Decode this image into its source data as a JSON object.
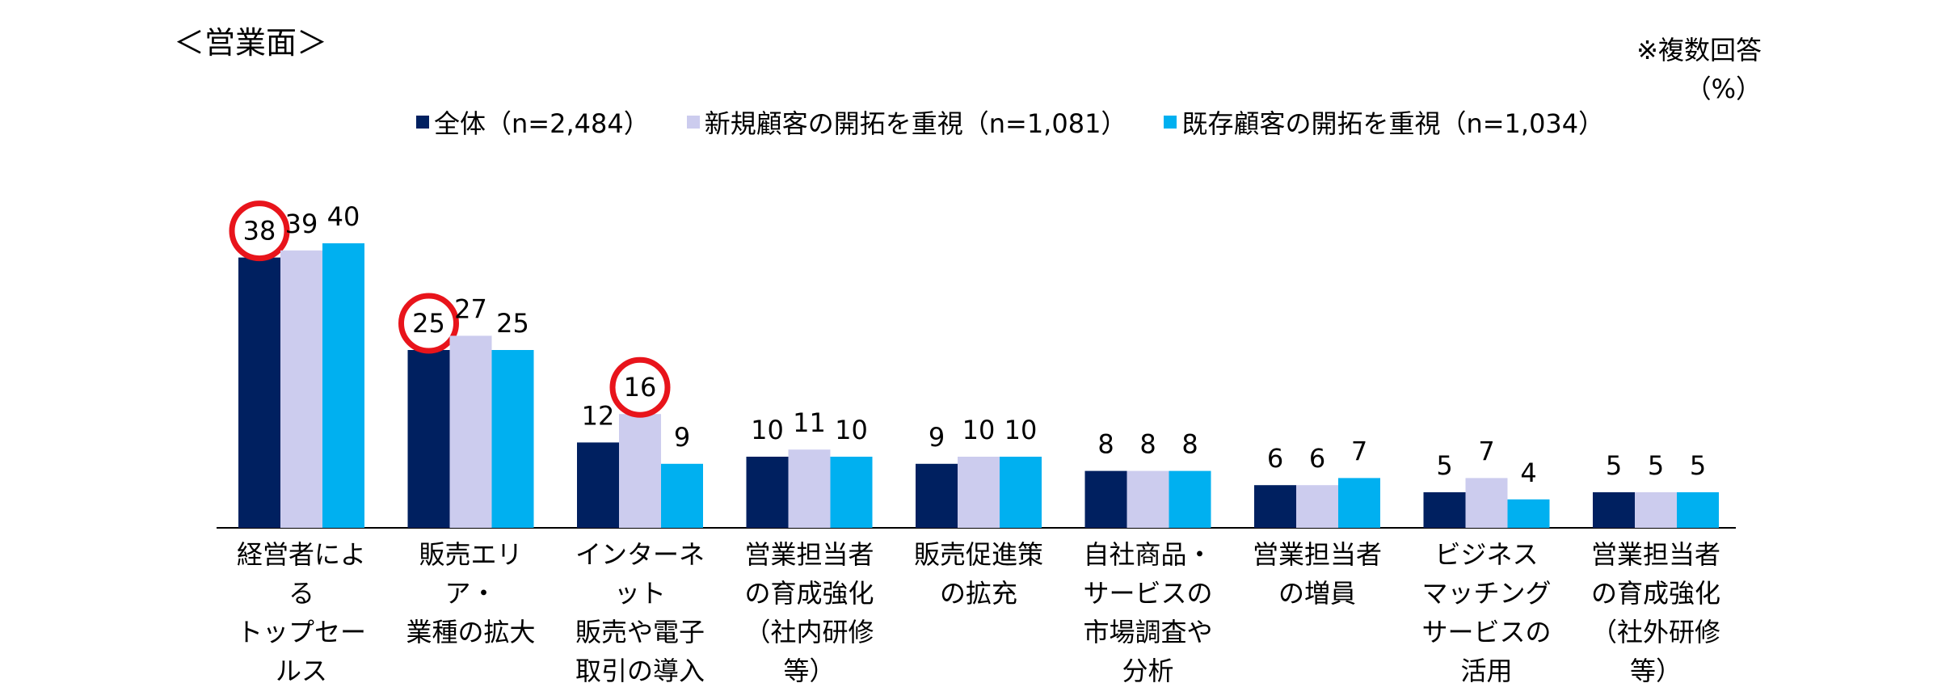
{
  "heading": "＜営業面＞",
  "note": [
    "※複数回答",
    "（%）"
  ],
  "legend": [
    {
      "label": "全体（n=2,484）",
      "color": "#002060"
    },
    {
      "label": "新規顧客の開拓を重視（n=1,081）",
      "color": "#CCCCEE"
    },
    {
      "label": "既存顧客の開拓を重視（n=1,034）",
      "color": "#00B0F0"
    }
  ],
  "chart_data": {
    "type": "bar",
    "categories": [
      "経営者による\nトップセールス",
      "販売エリア・\n業種の拡大",
      "インターネット\n販売や電子\n取引の導入",
      "営業担当者\nの育成強化\n（社内研修等）",
      "販売促進策\nの拡充",
      "自社商品・\nサービスの\n市場調査や\n分析",
      "営業担当者\nの増員",
      "ビジネス\nマッチング\nサービスの\n活用",
      "営業担当者\nの育成強化\n（社外研修等）"
    ],
    "series": [
      {
        "name": "全体（n=2,484）",
        "color": "#002060",
        "values": [
          38,
          25,
          12,
          10,
          9,
          8,
          6,
          5,
          5
        ]
      },
      {
        "name": "新規顧客の開拓を重視（n=1,081）",
        "color": "#CCCCEE",
        "values": [
          39,
          27,
          16,
          11,
          10,
          8,
          6,
          7,
          5
        ]
      },
      {
        "name": "既存顧客の開拓を重視（n=1,034）",
        "color": "#00B0F0",
        "values": [
          40,
          25,
          9,
          10,
          10,
          8,
          7,
          4,
          5
        ]
      }
    ],
    "highlighted": [
      {
        "category_index": 0,
        "series_index": 0,
        "value": 38
      },
      {
        "category_index": 1,
        "series_index": 0,
        "value": 25
      },
      {
        "category_index": 2,
        "series_index": 1,
        "value": 16
      }
    ],
    "highlight_color": "#E8141B",
    "ylim": [
      0,
      40
    ],
    "grid": false
  }
}
